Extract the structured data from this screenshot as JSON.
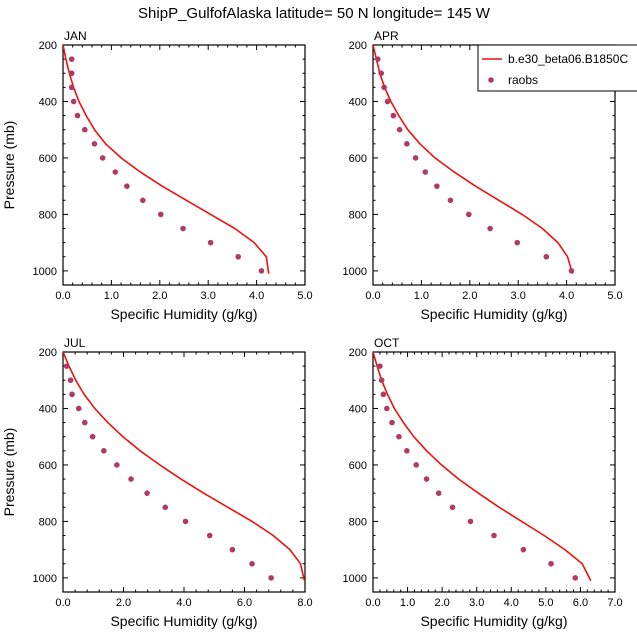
{
  "figure": {
    "title": "ShipP_GulfofAlaska  latitude= 50 N longitude= 145 W"
  },
  "legend": {
    "entries": [
      {
        "label": "b.e30_beta06.B1850C",
        "marker": "line",
        "color": "#ee1111"
      },
      {
        "label": "raobs",
        "marker": "dot",
        "color": "#b03a62"
      }
    ],
    "placement": "top-right of APR panel, clipped at page edge"
  },
  "colors": {
    "model": "#ee1111",
    "obs": "#b03a62",
    "axis": "#000000"
  },
  "chart_data": [
    {
      "type": "line",
      "panel": "JAN",
      "xlabel": "Specific Humidity (g/kg)",
      "ylabel": "Pressure (mb)",
      "xlim": [
        0,
        5
      ],
      "ylim": [
        1050,
        200
      ],
      "x_ticks": [
        0,
        1,
        2,
        3,
        4,
        5
      ],
      "x_tick_labels": [
        "0.0",
        "1.0",
        "2.0",
        "3.0",
        "4.0",
        "5.0"
      ],
      "y_ticks": [
        200,
        400,
        600,
        800,
        1000
      ],
      "y_tick_labels": [
        "200",
        "400",
        "600",
        "800",
        "1000"
      ],
      "series": [
        {
          "name": "b.e30_beta06.B1850C",
          "style": "line",
          "x": [
            0.0,
            0.06,
            0.13,
            0.22,
            0.33,
            0.48,
            0.65,
            0.88,
            1.2,
            1.6,
            2.05,
            2.55,
            3.05,
            3.55,
            3.95,
            4.2,
            4.25
          ],
          "y": [
            200,
            250,
            300,
            350,
            400,
            450,
            500,
            550,
            600,
            650,
            700,
            750,
            800,
            850,
            900,
            950,
            1010
          ]
        },
        {
          "name": "raobs",
          "style": "markers",
          "x": [
            0.18,
            0.18,
            0.18,
            0.22,
            0.3,
            0.45,
            0.65,
            0.82,
            1.08,
            1.32,
            1.65,
            2.02,
            2.48,
            3.05,
            3.62,
            4.1
          ],
          "y": [
            250,
            300,
            350,
            400,
            450,
            500,
            550,
            600,
            650,
            700,
            750,
            800,
            850,
            900,
            950,
            1000
          ]
        }
      ]
    },
    {
      "type": "line",
      "panel": "APR",
      "xlabel": "Specific Humidity (g/kg)",
      "ylabel": "",
      "xlim": [
        0,
        5
      ],
      "ylim": [
        1050,
        200
      ],
      "x_ticks": [
        0,
        1,
        2,
        3,
        4,
        5
      ],
      "x_tick_labels": [
        "0.0",
        "1.0",
        "2.0",
        "3.0",
        "4.0",
        "5.0"
      ],
      "y_ticks": [
        200,
        400,
        600,
        800,
        1000
      ],
      "y_tick_labels": [
        "200",
        "400",
        "600",
        "800",
        "1000"
      ],
      "series": [
        {
          "name": "b.e30_beta06.B1850C",
          "style": "line",
          "x": [
            0.0,
            0.07,
            0.14,
            0.24,
            0.37,
            0.53,
            0.72,
            0.97,
            1.28,
            1.68,
            2.12,
            2.6,
            3.08,
            3.5,
            3.82,
            4.02,
            4.12
          ],
          "y": [
            200,
            250,
            300,
            350,
            400,
            450,
            500,
            550,
            600,
            650,
            700,
            750,
            800,
            850,
            900,
            950,
            1010
          ]
        },
        {
          "name": "raobs",
          "style": "markers",
          "x": [
            0.1,
            0.17,
            0.23,
            0.3,
            0.42,
            0.55,
            0.7,
            0.88,
            1.08,
            1.32,
            1.6,
            1.98,
            2.42,
            2.98,
            3.58,
            4.1
          ],
          "y": [
            250,
            300,
            350,
            400,
            450,
            500,
            550,
            600,
            650,
            700,
            750,
            800,
            850,
            900,
            950,
            1000
          ]
        }
      ]
    },
    {
      "type": "line",
      "panel": "JUL",
      "xlabel": "Specific Humidity (g/kg)",
      "ylabel": "Pressure (mb)",
      "xlim": [
        0,
        8
      ],
      "ylim": [
        1050,
        200
      ],
      "x_ticks": [
        0,
        2,
        4,
        6,
        8
      ],
      "x_tick_labels": [
        "0.0",
        "2.0",
        "4.0",
        "6.0",
        "8.0"
      ],
      "y_ticks": [
        200,
        400,
        600,
        800,
        1000
      ],
      "y_tick_labels": [
        "200",
        "400",
        "600",
        "800",
        "1000"
      ],
      "series": [
        {
          "name": "b.e30_beta06.B1850C",
          "style": "line",
          "x": [
            0.0,
            0.2,
            0.42,
            0.7,
            1.05,
            1.48,
            1.98,
            2.55,
            3.2,
            3.9,
            4.65,
            5.45,
            6.25,
            6.95,
            7.5,
            7.85,
            7.98
          ],
          "y": [
            200,
            250,
            300,
            350,
            400,
            450,
            500,
            550,
            600,
            650,
            700,
            750,
            800,
            850,
            900,
            950,
            1010
          ]
        },
        {
          "name": "raobs",
          "style": "markers",
          "x": [
            0.12,
            0.25,
            0.3,
            0.52,
            0.72,
            0.98,
            1.35,
            1.78,
            2.25,
            2.78,
            3.38,
            4.05,
            4.85,
            5.6,
            6.25,
            6.88
          ],
          "y": [
            250,
            300,
            350,
            400,
            450,
            500,
            550,
            600,
            650,
            700,
            750,
            800,
            850,
            900,
            950,
            1000
          ]
        }
      ]
    },
    {
      "type": "line",
      "panel": "OCT",
      "xlabel": "Specific Humidity (g/kg)",
      "ylabel": "",
      "xlim": [
        0,
        7
      ],
      "ylim": [
        1050,
        200
      ],
      "x_ticks": [
        0,
        1,
        2,
        3,
        4,
        5,
        6,
        7
      ],
      "x_tick_labels": [
        "0.0",
        "1.0",
        "2.0",
        "3.0",
        "4.0",
        "5.0",
        "6.0",
        "7.0"
      ],
      "y_ticks": [
        200,
        400,
        600,
        800,
        1000
      ],
      "y_tick_labels": [
        "200",
        "400",
        "600",
        "800",
        "1000"
      ],
      "series": [
        {
          "name": "b.e30_beta06.B1850C",
          "style": "line",
          "x": [
            0.0,
            0.12,
            0.25,
            0.42,
            0.62,
            0.88,
            1.18,
            1.55,
            1.98,
            2.48,
            3.05,
            3.65,
            4.3,
            4.95,
            5.55,
            6.05,
            6.3
          ],
          "y": [
            200,
            250,
            300,
            350,
            400,
            450,
            500,
            550,
            600,
            650,
            700,
            750,
            800,
            850,
            900,
            950,
            1010
          ]
        },
        {
          "name": "raobs",
          "style": "markers",
          "x": [
            0.2,
            0.25,
            0.3,
            0.4,
            0.55,
            0.75,
            0.98,
            1.25,
            1.55,
            1.9,
            2.3,
            2.82,
            3.5,
            4.35,
            5.15,
            5.85
          ],
          "y": [
            250,
            300,
            350,
            400,
            450,
            500,
            550,
            600,
            650,
            700,
            750,
            800,
            850,
            900,
            950,
            1000
          ]
        }
      ]
    }
  ]
}
